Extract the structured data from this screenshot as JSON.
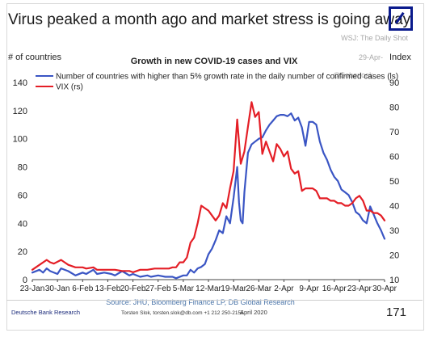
{
  "headline": "Virus peaked a month ago and market stress is going away",
  "watermarks": {
    "source": "WSJ: The Daily Shot",
    "date": "29-Apr-",
    "handle": "@Soberlook"
  },
  "footer": {
    "left": "Deutsche Bank Research",
    "contact": "Torsten Slok, torsten.slok@db.com +1 212 250-2155",
    "date": "April 2020",
    "page_number": "171"
  },
  "colors": {
    "blue": "#3a55c4",
    "red": "#e41e26",
    "logo": "#0a1a8c"
  },
  "chart_data": {
    "type": "line",
    "title": "Growth in new COVID-19 cases and VIX",
    "y_left_label": "# of countries",
    "y_right_label": "Index",
    "source": "Source: JHU, Bloomberg Finance LP, DB Global Research",
    "x_tick_labels": [
      "23-Jan",
      "30-Jan",
      "6-Feb",
      "13-Feb",
      "20-Feb",
      "27-Feb",
      "5-Mar",
      "12-Mar",
      "19-Mar",
      "26-Mar",
      "2-Apr",
      "9-Apr",
      "16-Apr",
      "23-Apr",
      "30-Apr"
    ],
    "y_left_ticks": [
      0,
      20,
      40,
      60,
      80,
      100,
      120,
      140
    ],
    "y_right_ticks": [
      10,
      20,
      30,
      40,
      50,
      60,
      70,
      80,
      90
    ],
    "y_left_lim": [
      0,
      140
    ],
    "y_right_lim": [
      10,
      90
    ],
    "x_lim": [
      0,
      98
    ],
    "legend_position": "top-left",
    "series": [
      {
        "name": "Number of countries with higher than 5% growth rate in the daily number of confirmed cases (ls)",
        "axis": "left",
        "color": "blue",
        "points": [
          [
            0,
            5
          ],
          [
            2,
            7
          ],
          [
            3,
            5
          ],
          [
            4,
            8
          ],
          [
            5,
            6
          ],
          [
            7,
            4
          ],
          [
            8,
            8
          ],
          [
            10,
            6
          ],
          [
            12,
            3
          ],
          [
            14,
            5
          ],
          [
            15,
            4
          ],
          [
            17,
            7
          ],
          [
            18,
            4
          ],
          [
            20,
            5
          ],
          [
            22,
            4
          ],
          [
            23,
            3
          ],
          [
            25,
            6
          ],
          [
            27,
            3
          ],
          [
            28,
            4
          ],
          [
            30,
            2
          ],
          [
            32,
            3
          ],
          [
            33,
            2
          ],
          [
            35,
            3
          ],
          [
            37,
            2
          ],
          [
            39,
            2
          ],
          [
            40,
            1
          ],
          [
            42,
            3
          ],
          [
            43,
            3
          ],
          [
            44,
            7
          ],
          [
            45,
            5
          ],
          [
            46,
            8
          ],
          [
            47,
            9
          ],
          [
            48,
            11
          ],
          [
            49,
            18
          ],
          [
            50,
            22
          ],
          [
            51,
            28
          ],
          [
            52,
            35
          ],
          [
            53,
            33
          ],
          [
            54,
            45
          ],
          [
            55,
            40
          ],
          [
            56,
            58
          ],
          [
            57,
            80
          ],
          [
            57.5,
            55
          ],
          [
            58,
            42
          ],
          [
            58.5,
            40
          ],
          [
            59,
            62
          ],
          [
            60,
            90
          ],
          [
            61,
            96
          ],
          [
            62,
            98
          ],
          [
            63,
            100
          ],
          [
            64,
            101
          ],
          [
            65,
            106
          ],
          [
            66,
            110
          ],
          [
            67,
            113
          ],
          [
            68,
            116
          ],
          [
            69,
            117
          ],
          [
            70,
            117
          ],
          [
            71,
            116
          ],
          [
            72,
            118
          ],
          [
            73,
            113
          ],
          [
            74,
            115
          ],
          [
            75,
            108
          ],
          [
            76,
            95
          ],
          [
            77,
            112
          ],
          [
            78,
            112
          ],
          [
            79,
            110
          ],
          [
            80,
            98
          ],
          [
            81,
            90
          ],
          [
            82,
            85
          ],
          [
            83,
            78
          ],
          [
            84,
            73
          ],
          [
            85,
            70
          ],
          [
            86,
            64
          ],
          [
            87,
            62
          ],
          [
            88,
            60
          ],
          [
            89,
            55
          ],
          [
            90,
            48
          ],
          [
            91,
            46
          ],
          [
            92,
            42
          ],
          [
            93,
            40
          ],
          [
            94,
            52
          ],
          [
            95,
            46
          ],
          [
            96,
            40
          ],
          [
            97,
            35
          ],
          [
            98,
            29
          ]
        ]
      },
      {
        "name": "VIX (rs)",
        "axis": "right",
        "color": "red",
        "points": [
          [
            0,
            14
          ],
          [
            2,
            16
          ],
          [
            4,
            18
          ],
          [
            5,
            17
          ],
          [
            6,
            16.5
          ],
          [
            8,
            18
          ],
          [
            9,
            17
          ],
          [
            10,
            16
          ],
          [
            12,
            15
          ],
          [
            14,
            15
          ],
          [
            15,
            14.5
          ],
          [
            17,
            15
          ],
          [
            18,
            14
          ],
          [
            20,
            14
          ],
          [
            22,
            14
          ],
          [
            23,
            14
          ],
          [
            25,
            13.5
          ],
          [
            27,
            13.5
          ],
          [
            28,
            13
          ],
          [
            30,
            14
          ],
          [
            32,
            14
          ],
          [
            34,
            14.5
          ],
          [
            36,
            14.5
          ],
          [
            38,
            14.5
          ],
          [
            39,
            15
          ],
          [
            40,
            15
          ],
          [
            41,
            17
          ],
          [
            42,
            17
          ],
          [
            43,
            19
          ],
          [
            44,
            25
          ],
          [
            45,
            27
          ],
          [
            46,
            33
          ],
          [
            47,
            40
          ],
          [
            48,
            39
          ],
          [
            49,
            38
          ],
          [
            50,
            36
          ],
          [
            51,
            34
          ],
          [
            52,
            36
          ],
          [
            53,
            41
          ],
          [
            54,
            39
          ],
          [
            55,
            47
          ],
          [
            56,
            54
          ],
          [
            57,
            75
          ],
          [
            58,
            57
          ],
          [
            59,
            62
          ],
          [
            60,
            72
          ],
          [
            61,
            82
          ],
          [
            62,
            76
          ],
          [
            63,
            78
          ],
          [
            64,
            61
          ],
          [
            65,
            66
          ],
          [
            66,
            62
          ],
          [
            67,
            58
          ],
          [
            68,
            65
          ],
          [
            69,
            63
          ],
          [
            70,
            60
          ],
          [
            71,
            62
          ],
          [
            72,
            55
          ],
          [
            73,
            53
          ],
          [
            74,
            54
          ],
          [
            75,
            46
          ],
          [
            76,
            47
          ],
          [
            77,
            47
          ],
          [
            78,
            47
          ],
          [
            79,
            46
          ],
          [
            80,
            43
          ],
          [
            81,
            43
          ],
          [
            82,
            43
          ],
          [
            83,
            42
          ],
          [
            84,
            42
          ],
          [
            85,
            41
          ],
          [
            86,
            41
          ],
          [
            87,
            40
          ],
          [
            88,
            40
          ],
          [
            89,
            41
          ],
          [
            90,
            43
          ],
          [
            91,
            44
          ],
          [
            92,
            42
          ],
          [
            93,
            38
          ],
          [
            94,
            38
          ],
          [
            95,
            37
          ],
          [
            96,
            37
          ],
          [
            97,
            36
          ],
          [
            98,
            34
          ]
        ]
      }
    ]
  }
}
